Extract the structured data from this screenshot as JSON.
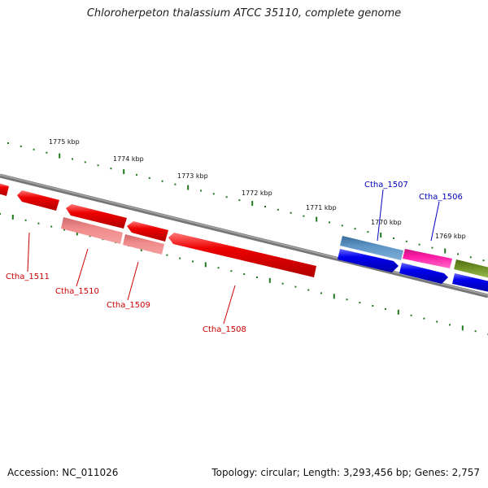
{
  "title": "Chloroherpeton thalassium ATCC 35110, complete genome",
  "footer": {
    "accession": "Accession: NC_011026",
    "summary": "Topology: circular; Length: 3,293,456 bp; Genes: 2,757"
  },
  "colors": {
    "backbone": "#808080",
    "ticks": "#1f7a1f",
    "label_red": "#cc0000",
    "label_blue": "#0000bb"
  },
  "scale_labels": [
    {
      "text": "1775 kbp",
      "name": "kbp-1775"
    },
    {
      "text": "1774 kbp",
      "name": "kbp-1774"
    },
    {
      "text": "1773 kbp",
      "name": "kbp-1773"
    },
    {
      "text": "1772 kbp",
      "name": "kbp-1772"
    },
    {
      "text": "1771 kbp",
      "name": "kbp-1771"
    },
    {
      "text": "1770 kbp",
      "name": "kbp-1770"
    },
    {
      "text": "1769 kbp",
      "name": "kbp-1769"
    }
  ],
  "gene_labels": [
    {
      "text": "Ctha_1511",
      "color": "#cc0000"
    },
    {
      "text": "Ctha_1510",
      "color": "#cc0000"
    },
    {
      "text": "Ctha_1509",
      "color": "#cc0000"
    },
    {
      "text": "Ctha_1508",
      "color": "#cc0000"
    },
    {
      "text": "Ctha_1507",
      "color": "#0000bb"
    },
    {
      "text": "Ctha_1506",
      "color": "#0000bb"
    }
  ],
  "features": [
    {
      "name": "feature-red-1",
      "color": "#ee0000",
      "strand": "reverse",
      "track": "outer-lower"
    },
    {
      "name": "feature-red-2",
      "color": "#ee0000",
      "strand": "reverse",
      "track": "outer-lower"
    },
    {
      "name": "feature-red-3",
      "color": "#ee0000",
      "strand": "reverse",
      "track": "outer-lower"
    },
    {
      "name": "feature-red-4",
      "color": "#ee0000",
      "strand": "reverse",
      "track": "outer-lower"
    },
    {
      "name": "feature-red-5",
      "color": "#ee0000",
      "strand": "reverse",
      "track": "inner-upper"
    },
    {
      "name": "feature-red-6",
      "color": "#ee0000",
      "strand": "reverse",
      "track": "inner-upper"
    },
    {
      "name": "feature-pink-1510",
      "color": "#f08080",
      "strand": "none",
      "track": "lower"
    },
    {
      "name": "feature-pink-1509",
      "color": "#f08080",
      "strand": "none",
      "track": "lower"
    },
    {
      "name": "feature-steelblue-1507",
      "color": "#4682b4",
      "strand": "none",
      "track": "upper"
    },
    {
      "name": "feature-magenta-1506",
      "color": "#e6199c",
      "strand": "none",
      "track": "upper"
    },
    {
      "name": "feature-olive",
      "color": "#6b8e23",
      "strand": "none",
      "track": "upper"
    },
    {
      "name": "feature-blue-1",
      "color": "#0000ee",
      "strand": "forward",
      "track": "lower"
    },
    {
      "name": "feature-blue-2",
      "color": "#0000ee",
      "strand": "forward",
      "track": "lower"
    },
    {
      "name": "feature-blue-3",
      "color": "#0000ee",
      "strand": "forward",
      "track": "lower"
    }
  ]
}
